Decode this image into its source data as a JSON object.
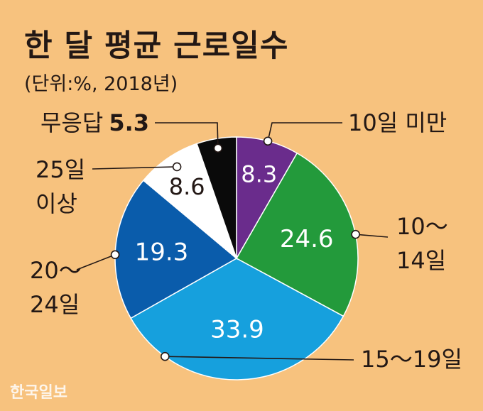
{
  "header": {
    "title": "한 달 평균 근로일수",
    "subtitle": "(단위:%, 2018년)"
  },
  "chart_data": {
    "type": "pie",
    "title": "한 달 평균 근로일수",
    "subtitle": "(단위:%, 2018년)",
    "slices": [
      {
        "label": "10일 미만",
        "value": 8.3,
        "value_label": "8.3",
        "color": "#6A2C8C",
        "text_color": "#FFFFFF"
      },
      {
        "label": "10～14일",
        "value": 24.6,
        "value_label": "24.6",
        "color": "#239A3B",
        "text_color": "#FFFFFF"
      },
      {
        "label": "15～19일",
        "value": 33.9,
        "value_label": "33.9",
        "color": "#16A0DD",
        "text_color": "#FFFFFF"
      },
      {
        "label": "20～24일",
        "value": 19.3,
        "value_label": "19.3",
        "color": "#0A5CAB",
        "text_color": "#FFFFFF"
      },
      {
        "label": "25일 이상",
        "value": 8.6,
        "value_label": "8.6",
        "color": "#FFFFFF",
        "text_color": "#231815"
      },
      {
        "label": "무응답",
        "value": 5.3,
        "value_label": "5.3",
        "color": "#0A0A0A",
        "text_color": "#231815"
      }
    ],
    "callout_labels": [
      {
        "lines": [
          "10일 미만"
        ]
      },
      {
        "lines": [
          "10～",
          "14일"
        ]
      },
      {
        "lines": [
          "15～19일"
        ]
      },
      {
        "lines": [
          "20～",
          "24일"
        ]
      },
      {
        "lines": [
          "25일",
          "이상"
        ]
      },
      {
        "lines": [
          "무응답"
        ],
        "value_text": "5.3"
      }
    ]
  },
  "watermark": "한국일보"
}
